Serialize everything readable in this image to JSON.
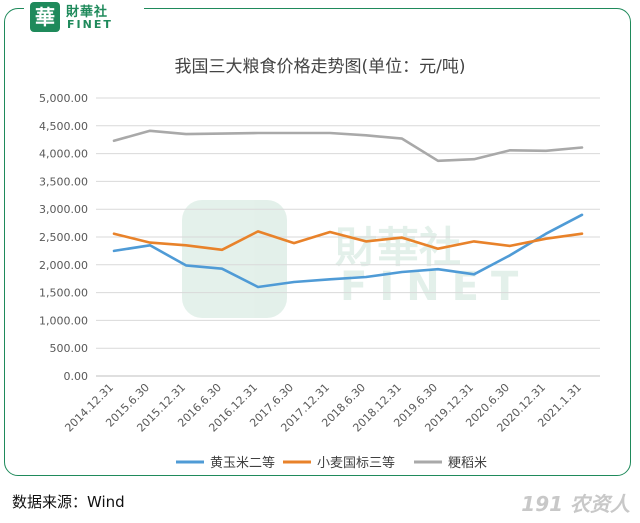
{
  "logo": {
    "badge": "華",
    "cn": "財華社",
    "en": "FINET"
  },
  "watermark": {
    "cn": "財華社",
    "en": "FINET"
  },
  "chart_data": {
    "type": "line",
    "title": "我国三大粮食价格走势图(单位：元/吨)",
    "xlabel": "",
    "ylabel": "",
    "categories": [
      "2014.12.31",
      "2015.6.30",
      "2015.12.31",
      "2016.6.30",
      "2016.12.31",
      "2017.6.30",
      "2017.12.31",
      "2018.6.30",
      "2018.12.31",
      "2019.6.30",
      "2019.12.31",
      "2020.6.30",
      "2020.12.31",
      "2021.1.31"
    ],
    "ylim": [
      0,
      5000
    ],
    "yticks": [
      "0.00",
      "500.00",
      "1,000.00",
      "1,500.00",
      "2,000.00",
      "2,500.00",
      "3,000.00",
      "3,500.00",
      "4,000.00",
      "4,500.00",
      "5,000.00"
    ],
    "grid": true,
    "legend_position": "bottom",
    "series": [
      {
        "name": "黄玉米二等",
        "color": "#4f9bd6",
        "values": [
          2250,
          2350,
          1990,
          1930,
          1600,
          1690,
          1740,
          1780,
          1870,
          1920,
          1830,
          2170,
          2560,
          2900
        ]
      },
      {
        "name": "小麦国标三等",
        "color": "#e8822a",
        "values": [
          2560,
          2400,
          2350,
          2270,
          2600,
          2390,
          2590,
          2420,
          2490,
          2290,
          2420,
          2340,
          2470,
          2560
        ]
      },
      {
        "name": "粳稻米",
        "color": "#a9a9a9",
        "values": [
          4230,
          4410,
          4350,
          4360,
          4370,
          4370,
          4370,
          4330,
          4270,
          3870,
          3900,
          4060,
          4050,
          4110
        ]
      }
    ]
  },
  "footer": {
    "source": "数据来源：Wind",
    "corner_mark": "191 农资人"
  }
}
